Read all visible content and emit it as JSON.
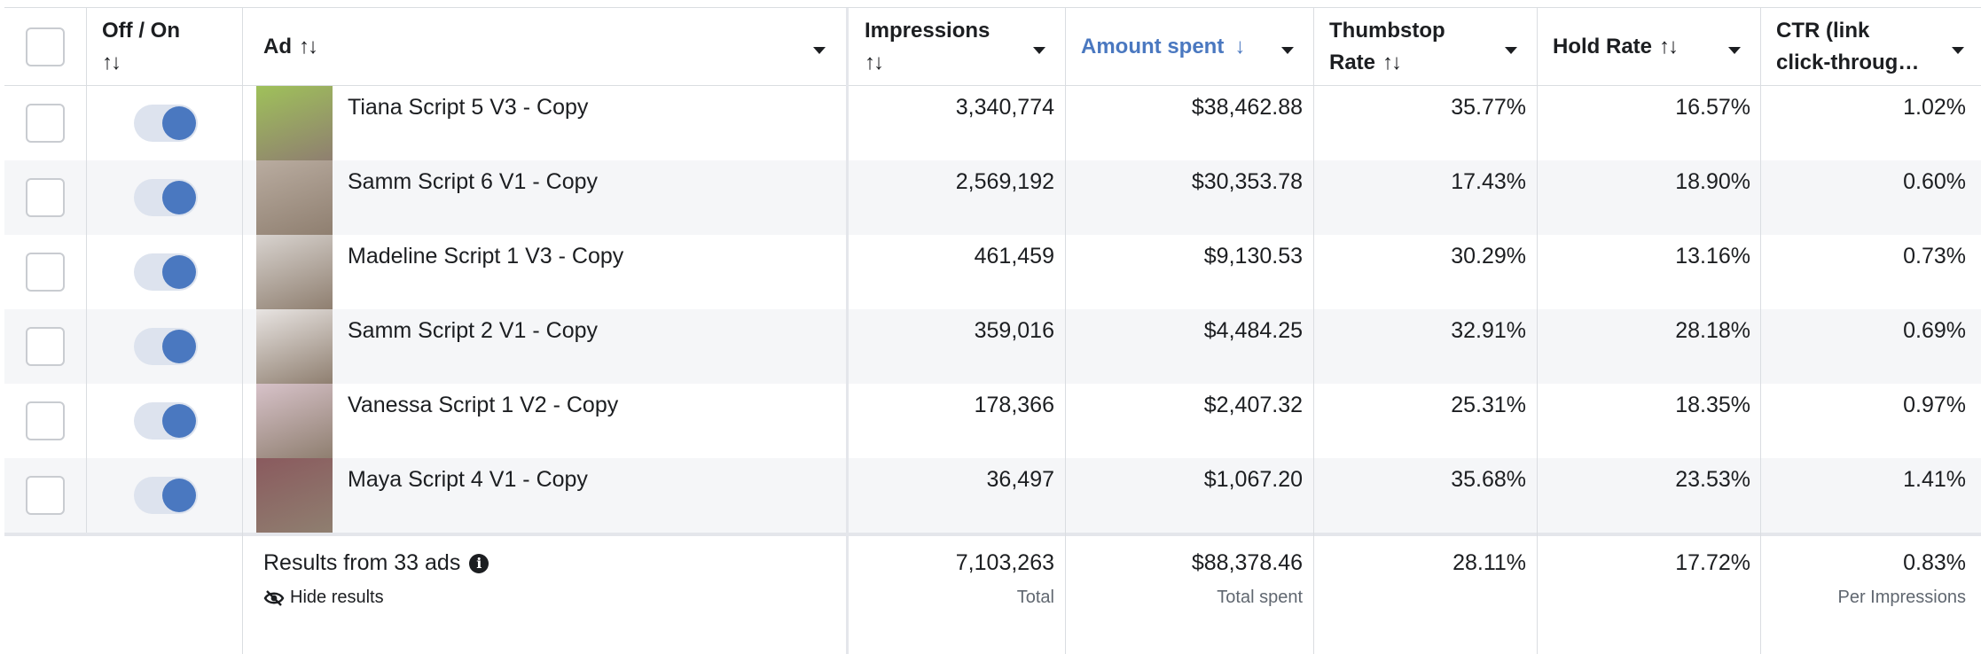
{
  "header": {
    "toggle_col": "Off / On",
    "ad_col": "Ad",
    "impressions_col": "Impressions",
    "amount_spent_col": "Amount spent",
    "thumbstop_col_line1": "Thumbstop",
    "thumbstop_col_line2": "Rate",
    "hold_rate_col": "Hold Rate",
    "ctr_col_line1": "CTR (link",
    "ctr_col_line2": "click-throug…",
    "sort_icon": "↑↓",
    "sort_desc_icon": "↓"
  },
  "rows": [
    {
      "name": "Tiana Script 5 V3 - Copy",
      "impressions": "3,340,774",
      "spent": "$38,462.88",
      "thumbstop": "35.77%",
      "hold": "16.57%",
      "ctr": "1.02%",
      "thumb_color": "#9fc15a"
    },
    {
      "name": "Samm Script 6 V1 - Copy",
      "impressions": "2,569,192",
      "spent": "$30,353.78",
      "thumbstop": "17.43%",
      "hold": "18.90%",
      "ctr": "0.60%",
      "thumb_color": "#b9aca0"
    },
    {
      "name": "Madeline Script 1 V3 - Copy",
      "impressions": "461,459",
      "spent": "$9,130.53",
      "thumbstop": "30.29%",
      "hold": "13.16%",
      "ctr": "0.73%",
      "thumb_color": "#d8d3cf"
    },
    {
      "name": "Samm Script 2 V1 - Copy",
      "impressions": "359,016",
      "spent": "$4,484.25",
      "thumbstop": "32.91%",
      "hold": "28.18%",
      "ctr": "0.69%",
      "thumb_color": "#e8e4e2"
    },
    {
      "name": "Vanessa Script 1 V2 - Copy",
      "impressions": "178,366",
      "spent": "$2,407.32",
      "thumbstop": "25.31%",
      "hold": "18.35%",
      "ctr": "0.97%",
      "thumb_color": "#d7c2c9"
    },
    {
      "name": "Maya Script 4 V1 - Copy",
      "impressions": "36,497",
      "spent": "$1,067.20",
      "thumbstop": "35.68%",
      "hold": "23.53%",
      "ctr": "1.41%",
      "thumb_color": "#8a5a5e"
    }
  ],
  "footer": {
    "results_label": "Results from 33 ads",
    "hide_results": "Hide results",
    "impressions_total": "7,103,263",
    "impressions_sub": "Total",
    "spent_total": "$88,378.46",
    "spent_sub": "Total spent",
    "thumbstop_total": "28.11%",
    "hold_total": "17.72%",
    "ctr_total": "0.83%",
    "ctr_sub": "Per Impressions"
  },
  "colors": {
    "accent": "#4a78c0",
    "toggle_track": "#dde3ee",
    "alt_row": "#f5f6f8",
    "border": "#dadde1"
  }
}
